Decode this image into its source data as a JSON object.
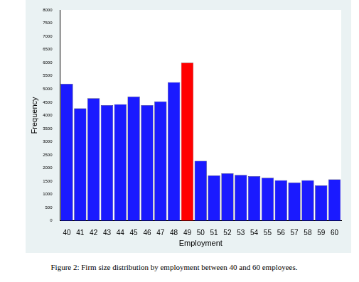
{
  "chart_data": {
    "type": "bar",
    "caption": "Figure 2: Firm size distribution by employment between 40 and 60 employees.",
    "x_label": "Employment",
    "y_label": "Frequency",
    "categories": [
      "40",
      "41",
      "42",
      "43",
      "44",
      "45",
      "46",
      "47",
      "48",
      "49",
      "50",
      "51",
      "52",
      "53",
      "54",
      "55",
      "56",
      "57",
      "58",
      "59",
      "60"
    ],
    "values": [
      5200,
      4270,
      4650,
      4390,
      4420,
      4710,
      4390,
      4530,
      5260,
      6000,
      2270,
      1720,
      1800,
      1740,
      1690,
      1630,
      1540,
      1450,
      1540,
      1340,
      1570
    ],
    "colors": [
      "#1a1aff",
      "#1a1aff",
      "#1a1aff",
      "#1a1aff",
      "#1a1aff",
      "#1a1aff",
      "#1a1aff",
      "#1a1aff",
      "#1a1aff",
      "#ff0000",
      "#1a1aff",
      "#1a1aff",
      "#1a1aff",
      "#1a1aff",
      "#1a1aff",
      "#1a1aff",
      "#1a1aff",
      "#1a1aff",
      "#1a1aff",
      "#1a1aff",
      "#1a1aff"
    ],
    "ylim": [
      0,
      8000
    ],
    "yticks": [
      0,
      500,
      1000,
      1500,
      2000,
      2500,
      3000,
      3500,
      4000,
      4500,
      5000,
      5500,
      6000,
      6500,
      7000,
      7500,
      8000
    ],
    "grid": false
  }
}
